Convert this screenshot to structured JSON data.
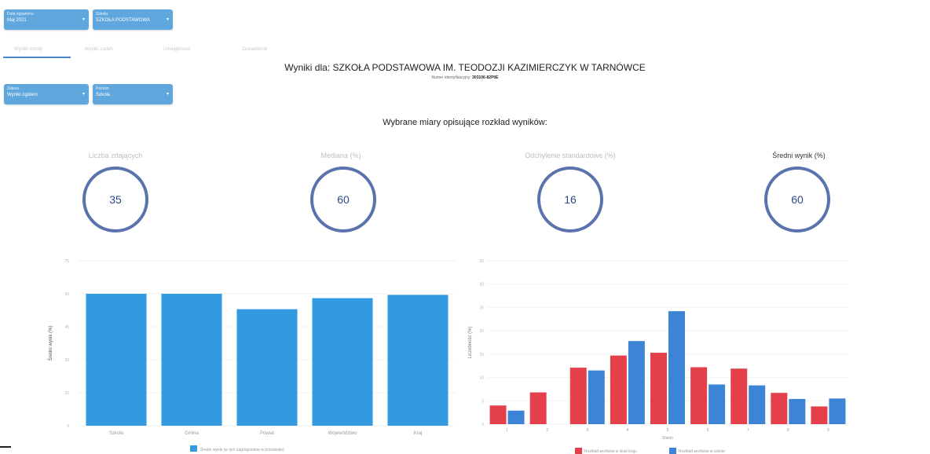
{
  "filters_top": [
    {
      "label": "Data egzaminu",
      "value": "Maj 2021"
    },
    {
      "label": "Szkoła",
      "value": "SZKOŁA PODSTAWOWA"
    }
  ],
  "tabs": [
    {
      "label": "Wyniki szkoły"
    },
    {
      "label": "Wyniki zadań"
    },
    {
      "label": "Umiejętności"
    },
    {
      "label": "Zestawienie"
    }
  ],
  "header": {
    "title": "Wyniki dla: SZKOŁA PODSTAWOWA IM. TEODOZJI KAZIMIERCZYK W TARNÓWCE",
    "subtitle_prefix": "Numer identyfikacyjny:",
    "subtitle_id": "303106-82P0E"
  },
  "filters_second": [
    {
      "label": "Zakres",
      "value": "Wyniki ogółem"
    },
    {
      "label": "Poziom",
      "value": "Szkoła"
    }
  ],
  "section_title": "Wybrane miary opisujące rozkład wyników:",
  "stats": [
    {
      "label": "Liczba zdających",
      "value": "35"
    },
    {
      "label": "Mediana (%)",
      "value": "60"
    },
    {
      "label": "Odchylenie standardowe (%)",
      "value": "16"
    },
    {
      "label": "Średni wynik (%)",
      "value": "60"
    }
  ],
  "colors": {
    "bar_blue": "#3399e0",
    "hist_red": "#e3404c",
    "hist_blue": "#3d84d6",
    "circle": "#5a73ad"
  },
  "chart_data": [
    {
      "type": "bar",
      "categories": [
        "Szkoła",
        "Gmina",
        "Powiat",
        "Województwo",
        "Kraj"
      ],
      "values": [
        60,
        60,
        53,
        58,
        59.5
      ],
      "ylabel": "Średni wynik (%)",
      "ylim": [
        0,
        75
      ],
      "yticks": [
        0,
        15,
        30,
        45,
        60,
        75
      ],
      "legend": [
        "Średni wynik (w tym zagregowane w przedziale)"
      ]
    },
    {
      "type": "bar",
      "x": [
        1,
        2,
        3,
        4,
        5,
        6,
        7,
        8,
        9
      ],
      "series": [
        {
          "name": "Rozkład wyników w skali kraju",
          "values": [
            4,
            6.8,
            12.1,
            14.7,
            15.3,
            12.2,
            11.9,
            6.7,
            3.8
          ]
        },
        {
          "name": "Rozkład wyników w szkole",
          "values": [
            2.9,
            null,
            11.5,
            17.8,
            24.2,
            8.5,
            8.3,
            5.4,
            5.5
          ]
        }
      ],
      "xlabel": "Stanin",
      "ylabel": "Liczebność (%)",
      "ylim": [
        0,
        35
      ],
      "yticks": [
        0,
        5,
        10,
        15,
        20,
        25,
        30,
        35
      ]
    }
  ]
}
